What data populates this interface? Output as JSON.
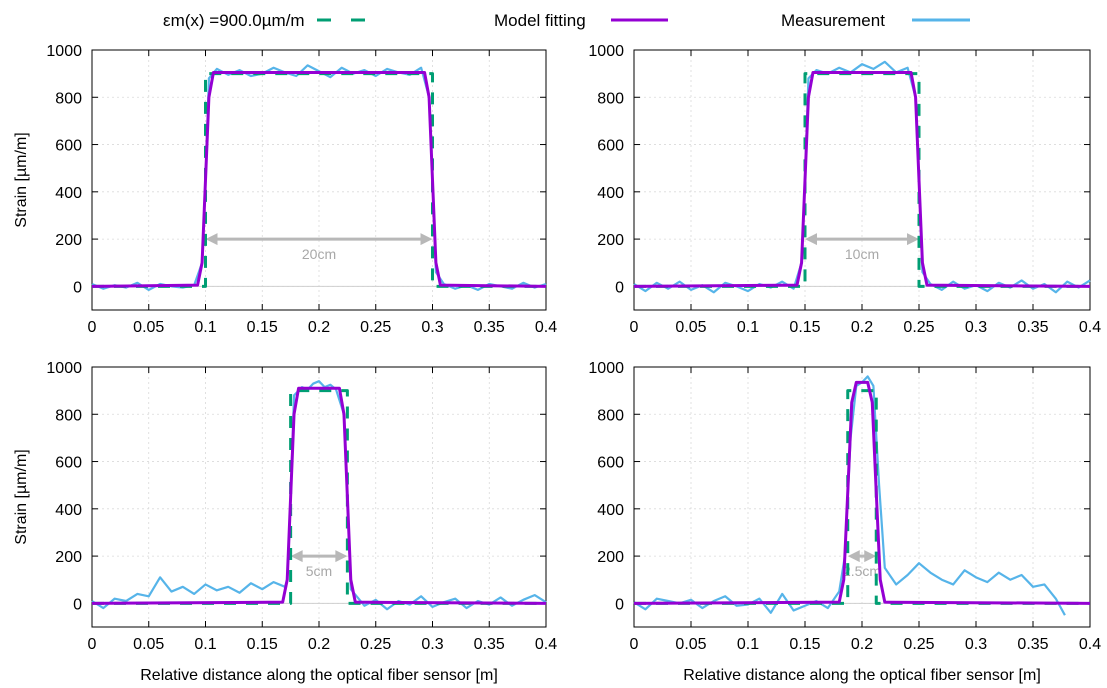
{
  "legend": {
    "design": {
      "label": "εm(x) =900.0µm/m",
      "color": "#009e73",
      "dash": "dashed"
    },
    "model": {
      "label": "Model fitting",
      "color": "#9400d3"
    },
    "measurement": {
      "label": "Measurement",
      "color": "#56b4e9"
    }
  },
  "chart_data": [
    {
      "type": "line",
      "xlabel": "",
      "ylabel": "Strain [µm/m]",
      "xlim": [
        0,
        0.4
      ],
      "ylim": [
        -100,
        1000
      ],
      "xticks": [
        "0",
        "0.05",
        "0.1",
        "0.15",
        "0.2",
        "0.25",
        "0.3",
        "0.35",
        "0.4"
      ],
      "yticks": [
        "0",
        "200",
        "400",
        "600",
        "800",
        "1000"
      ],
      "grid": true,
      "annotation": {
        "text": "20cm",
        "x1": 0.1,
        "x2": 0.3,
        "y": 200
      },
      "series": [
        {
          "name": "εm(x) =900.0µm/m",
          "x": [
            0,
            0.1,
            0.1,
            0.3,
            0.3,
            0.4
          ],
          "y": [
            0,
            0,
            900,
            900,
            0,
            0
          ]
        },
        {
          "name": "Model fitting",
          "x": [
            0,
            0.093,
            0.097,
            0.1,
            0.103,
            0.107,
            0.293,
            0.297,
            0.3,
            0.303,
            0.307,
            0.4
          ],
          "y": [
            0,
            5,
            100,
            450,
            800,
            905,
            905,
            800,
            450,
            100,
            5,
            0
          ]
        },
        {
          "name": "Measurement",
          "x": [
            0,
            0.01,
            0.02,
            0.03,
            0.04,
            0.05,
            0.06,
            0.07,
            0.08,
            0.09,
            0.097,
            0.1,
            0.103,
            0.11,
            0.12,
            0.13,
            0.14,
            0.15,
            0.16,
            0.17,
            0.18,
            0.19,
            0.2,
            0.21,
            0.22,
            0.23,
            0.24,
            0.25,
            0.26,
            0.27,
            0.28,
            0.29,
            0.297,
            0.3,
            0.303,
            0.31,
            0.32,
            0.33,
            0.34,
            0.35,
            0.36,
            0.37,
            0.38,
            0.39,
            0.4
          ],
          "y": [
            10,
            -10,
            5,
            -5,
            15,
            -15,
            10,
            0,
            -5,
            5,
            100,
            450,
            880,
            920,
            895,
            915,
            890,
            900,
            925,
            905,
            890,
            935,
            910,
            885,
            925,
            900,
            915,
            890,
            920,
            905,
            895,
            925,
            800,
            450,
            60,
            10,
            -10,
            5,
            -15,
            10,
            0,
            -10,
            15,
            -5,
            10
          ]
        }
      ]
    },
    {
      "type": "line",
      "xlabel": "",
      "ylabel": "",
      "xlim": [
        0,
        0.4
      ],
      "ylim": [
        -100,
        1000
      ],
      "xticks": [
        "0",
        "0.05",
        "0.1",
        "0.15",
        "0.2",
        "0.25",
        "0.3",
        "0.35",
        "0.4"
      ],
      "yticks": [
        "0",
        "200",
        "400",
        "600",
        "800",
        "1000"
      ],
      "grid": true,
      "annotation": {
        "text": "10cm",
        "x1": 0.15,
        "x2": 0.25,
        "y": 200
      },
      "series": [
        {
          "name": "εm(x) =900.0µm/m",
          "x": [
            0,
            0.15,
            0.15,
            0.25,
            0.25,
            0.4
          ],
          "y": [
            0,
            0,
            900,
            900,
            0,
            0
          ]
        },
        {
          "name": "Model fitting",
          "x": [
            0,
            0.143,
            0.147,
            0.15,
            0.153,
            0.157,
            0.243,
            0.247,
            0.25,
            0.253,
            0.257,
            0.4
          ],
          "y": [
            0,
            5,
            100,
            450,
            800,
            905,
            905,
            800,
            450,
            100,
            5,
            0
          ]
        },
        {
          "name": "Measurement",
          "x": [
            0,
            0.01,
            0.02,
            0.03,
            0.04,
            0.05,
            0.06,
            0.07,
            0.08,
            0.09,
            0.1,
            0.11,
            0.12,
            0.13,
            0.14,
            0.147,
            0.15,
            0.153,
            0.16,
            0.17,
            0.18,
            0.19,
            0.2,
            0.21,
            0.22,
            0.23,
            0.24,
            0.247,
            0.25,
            0.253,
            0.26,
            0.27,
            0.28,
            0.29,
            0.3,
            0.31,
            0.32,
            0.33,
            0.34,
            0.35,
            0.36,
            0.37,
            0.38,
            0.39,
            0.4
          ],
          "y": [
            10,
            -20,
            15,
            -10,
            20,
            -15,
            5,
            -25,
            15,
            0,
            -20,
            10,
            -5,
            20,
            -10,
            100,
            450,
            880,
            915,
            900,
            925,
            905,
            940,
            920,
            950,
            905,
            925,
            800,
            450,
            60,
            10,
            -15,
            20,
            -10,
            5,
            -20,
            15,
            -5,
            25,
            -10,
            10,
            -25,
            20,
            -5,
            25
          ]
        }
      ]
    },
    {
      "type": "line",
      "xlabel": "Relative distance along the optical fiber sensor [m]",
      "ylabel": "Strain [µm/m]",
      "xlim": [
        0,
        0.4
      ],
      "ylim": [
        -100,
        1000
      ],
      "xticks": [
        "0",
        "0.05",
        "0.1",
        "0.15",
        "0.2",
        "0.25",
        "0.3",
        "0.35",
        "0.4"
      ],
      "yticks": [
        "0",
        "200",
        "400",
        "600",
        "800",
        "1000"
      ],
      "grid": true,
      "annotation": {
        "text": "5cm",
        "x1": 0.175,
        "x2": 0.225,
        "y": 200
      },
      "series": [
        {
          "name": "εm(x) =900.0µm/m",
          "x": [
            0,
            0.175,
            0.175,
            0.225,
            0.225,
            0.4
          ],
          "y": [
            0,
            0,
            900,
            900,
            0,
            0
          ]
        },
        {
          "name": "Model fitting",
          "x": [
            0,
            0.168,
            0.172,
            0.175,
            0.178,
            0.182,
            0.218,
            0.222,
            0.225,
            0.228,
            0.232,
            0.4
          ],
          "y": [
            0,
            5,
            100,
            450,
            800,
            910,
            910,
            800,
            450,
            100,
            5,
            0
          ]
        },
        {
          "name": "Measurement",
          "x": [
            0,
            0.01,
            0.02,
            0.03,
            0.04,
            0.05,
            0.06,
            0.07,
            0.08,
            0.09,
            0.1,
            0.11,
            0.12,
            0.13,
            0.14,
            0.15,
            0.16,
            0.17,
            0.172,
            0.175,
            0.178,
            0.185,
            0.19,
            0.195,
            0.2,
            0.205,
            0.21,
            0.215,
            0.222,
            0.225,
            0.228,
            0.24,
            0.25,
            0.26,
            0.27,
            0.28,
            0.29,
            0.3,
            0.31,
            0.32,
            0.33,
            0.34,
            0.35,
            0.36,
            0.37,
            0.38,
            0.39,
            0.4
          ],
          "y": [
            10,
            -20,
            20,
            10,
            40,
            30,
            110,
            50,
            70,
            40,
            80,
            55,
            70,
            45,
            85,
            60,
            90,
            70,
            100,
            450,
            880,
            915,
            905,
            930,
            940,
            915,
            925,
            905,
            800,
            450,
            60,
            -10,
            15,
            -25,
            10,
            -5,
            30,
            -15,
            5,
            20,
            -20,
            10,
            -5,
            25,
            -10,
            15,
            35,
            5
          ]
        }
      ]
    },
    {
      "type": "line",
      "xlabel": "Relative distance along the optical fiber sensor [m]",
      "ylabel": "",
      "xlim": [
        0,
        0.4
      ],
      "ylim": [
        -100,
        1000
      ],
      "xticks": [
        "0",
        "0.05",
        "0.1",
        "0.15",
        "0.2",
        "0.25",
        "0.3",
        "0.35",
        "0.4"
      ],
      "yticks": [
        "0",
        "200",
        "400",
        "600",
        "800",
        "1000"
      ],
      "grid": true,
      "annotation": {
        "text": "2.5cm",
        "x1": 0.1875,
        "x2": 0.2125,
        "y": 200
      },
      "series": [
        {
          "name": "εm(x) =900.0µm/m",
          "x": [
            0,
            0.1875,
            0.1875,
            0.2125,
            0.2125,
            0.4
          ],
          "y": [
            0,
            0,
            900,
            900,
            0,
            0
          ]
        },
        {
          "name": "Model fitting",
          "x": [
            0,
            0.18,
            0.184,
            0.1875,
            0.191,
            0.195,
            0.205,
            0.209,
            0.2125,
            0.216,
            0.22,
            0.4
          ],
          "y": [
            0,
            5,
            100,
            470,
            850,
            935,
            935,
            850,
            470,
            100,
            5,
            0
          ]
        },
        {
          "name": "Measurement",
          "x": [
            0,
            0.01,
            0.02,
            0.03,
            0.04,
            0.05,
            0.06,
            0.07,
            0.08,
            0.09,
            0.1,
            0.11,
            0.12,
            0.13,
            0.14,
            0.15,
            0.16,
            0.17,
            0.18,
            0.185,
            0.19,
            0.195,
            0.2,
            0.205,
            0.21,
            0.215,
            0.22,
            0.23,
            0.24,
            0.25,
            0.26,
            0.27,
            0.28,
            0.29,
            0.3,
            0.31,
            0.32,
            0.33,
            0.34,
            0.35,
            0.36,
            0.37,
            0.378
          ],
          "y": [
            5,
            -25,
            20,
            10,
            0,
            15,
            -20,
            10,
            30,
            -10,
            -5,
            20,
            -40,
            40,
            -30,
            -10,
            10,
            -20,
            50,
            200,
            700,
            920,
            935,
            960,
            920,
            500,
            150,
            80,
            120,
            170,
            130,
            100,
            80,
            140,
            110,
            90,
            130,
            100,
            120,
            70,
            80,
            20,
            -50
          ]
        }
      ]
    }
  ]
}
